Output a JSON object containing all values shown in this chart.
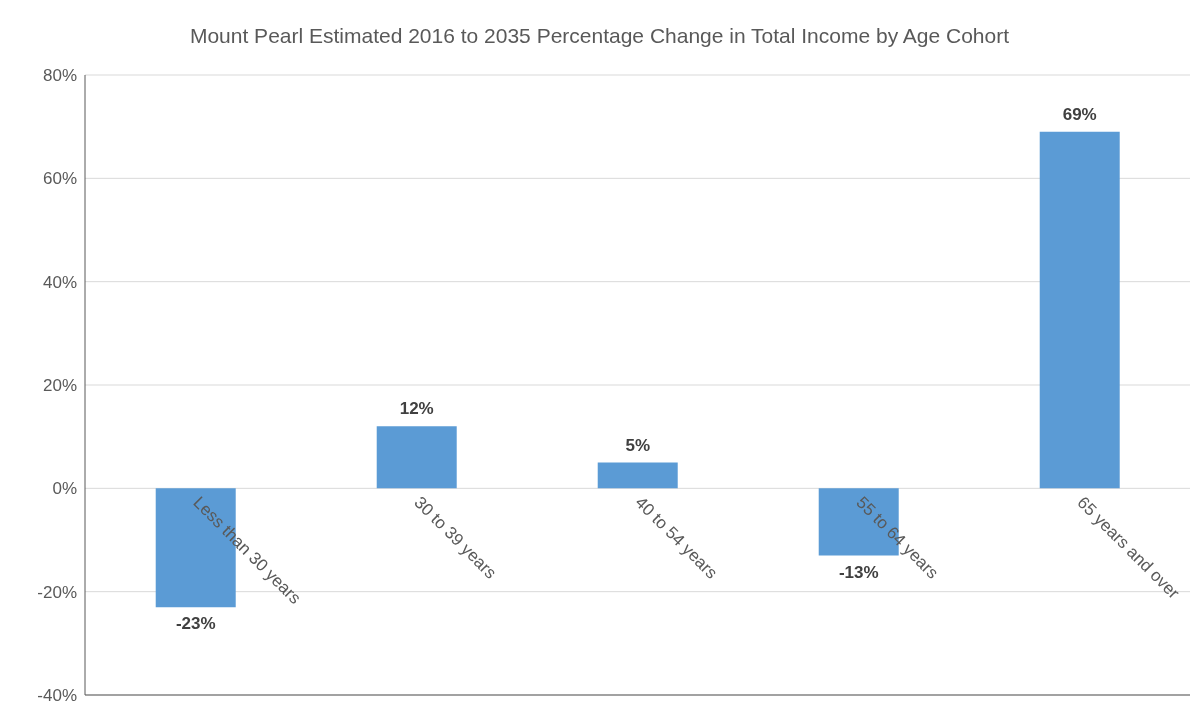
{
  "chart_data": {
    "type": "bar",
    "title": "Mount Pearl Estimated 2016 to 2035 Percentage Change in Total Income by Age Cohort",
    "categories": [
      "Less than 30 years",
      "30 to 39 years",
      "40 to 54 years",
      "55 to 64 years",
      "65 years and over"
    ],
    "values": [
      -23,
      12,
      5,
      -13,
      69
    ],
    "color": "#5b9bd5",
    "value_labels": [
      "-23%",
      "12%",
      "5%",
      "-13%",
      "69%"
    ],
    "ylim": [
      -40,
      80
    ],
    "yticks": [
      {
        "value": -40,
        "label": "-40%"
      },
      {
        "value": -20,
        "label": "-20%"
      },
      {
        "value": 0,
        "label": "0%"
      },
      {
        "value": 20,
        "label": "20%"
      },
      {
        "value": 40,
        "label": "40%"
      },
      {
        "value": 60,
        "label": "60%"
      },
      {
        "value": 80,
        "label": "80%"
      }
    ],
    "grid": "y"
  }
}
